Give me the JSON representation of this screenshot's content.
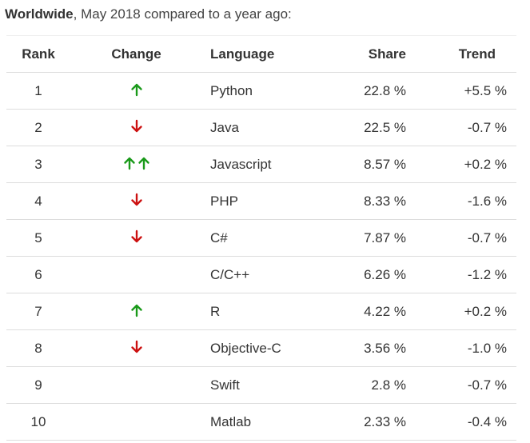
{
  "heading": {
    "bold": "Worldwide",
    "rest": ", May 2018 compared to a year ago:"
  },
  "table": {
    "headers": {
      "rank": "Rank",
      "change": "Change",
      "language": "Language",
      "share": "Share",
      "trend": "Trend"
    },
    "rows": [
      {
        "rank": "1",
        "change": "up",
        "language": "Python",
        "share": "22.8 %",
        "trend": "+5.5 %"
      },
      {
        "rank": "2",
        "change": "down",
        "language": "Java",
        "share": "22.5 %",
        "trend": "-0.7 %"
      },
      {
        "rank": "3",
        "change": "double-up",
        "language": "Javascript",
        "share": "8.57 %",
        "trend": "+0.2 %"
      },
      {
        "rank": "4",
        "change": "down",
        "language": "PHP",
        "share": "8.33 %",
        "trend": "-1.6 %"
      },
      {
        "rank": "5",
        "change": "down",
        "language": "C#",
        "share": "7.87 %",
        "trend": "-0.7 %"
      },
      {
        "rank": "6",
        "change": "none",
        "language": "C/C++",
        "share": "6.26 %",
        "trend": "-1.2 %"
      },
      {
        "rank": "7",
        "change": "up",
        "language": "R",
        "share": "4.22 %",
        "trend": "+0.2 %"
      },
      {
        "rank": "8",
        "change": "down",
        "language": "Objective-C",
        "share": "3.56 %",
        "trend": "-1.0 %"
      },
      {
        "rank": "9",
        "change": "none",
        "language": "Swift",
        "share": "2.8 %",
        "trend": "-0.7 %"
      },
      {
        "rank": "10",
        "change": "none",
        "language": "Matlab",
        "share": "2.33 %",
        "trend": "-0.4 %"
      }
    ]
  },
  "colors": {
    "up": "#1a9a1a",
    "down": "#cc1111"
  },
  "icons": {
    "up": "arrow-up-icon",
    "down": "arrow-down-icon"
  }
}
